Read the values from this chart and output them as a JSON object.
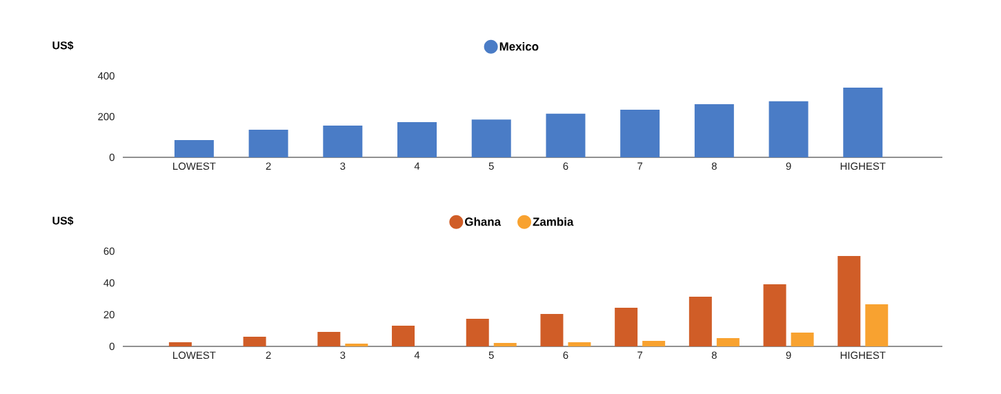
{
  "chart_data": [
    {
      "type": "bar",
      "ylabel": "US$",
      "categories": [
        "LOWEST",
        "2",
        "3",
        "4",
        "5",
        "6",
        "7",
        "8",
        "9",
        "HIGHEST"
      ],
      "ylim": [
        0,
        400
      ],
      "yticks": [
        0,
        200,
        400
      ],
      "legend": "top",
      "grid": false,
      "series": [
        {
          "name": "Mexico",
          "color": "#4a7cc6",
          "values": [
            85,
            136,
            156,
            173,
            186,
            214,
            234,
            261,
            275,
            342
          ]
        }
      ]
    },
    {
      "type": "bar",
      "ylabel": "US$",
      "categories": [
        "LOWEST",
        "2",
        "3",
        "4",
        "5",
        "6",
        "7",
        "8",
        "9",
        "HIGHEST"
      ],
      "ylim": [
        0,
        60
      ],
      "yticks": [
        0,
        20,
        40,
        60
      ],
      "legend": "top",
      "grid": false,
      "series": [
        {
          "name": "Ghana",
          "color": "#d05d27",
          "values": [
            2.6,
            6.1,
            9.1,
            13,
            17.4,
            20.4,
            24.3,
            31.3,
            39.1,
            57
          ]
        },
        {
          "name": "Zambia",
          "color": "#f8a230",
          "values": [
            null,
            null,
            1.7,
            null,
            2.2,
            2.6,
            3.5,
            5.2,
            8.7,
            26.5
          ]
        }
      ]
    }
  ]
}
